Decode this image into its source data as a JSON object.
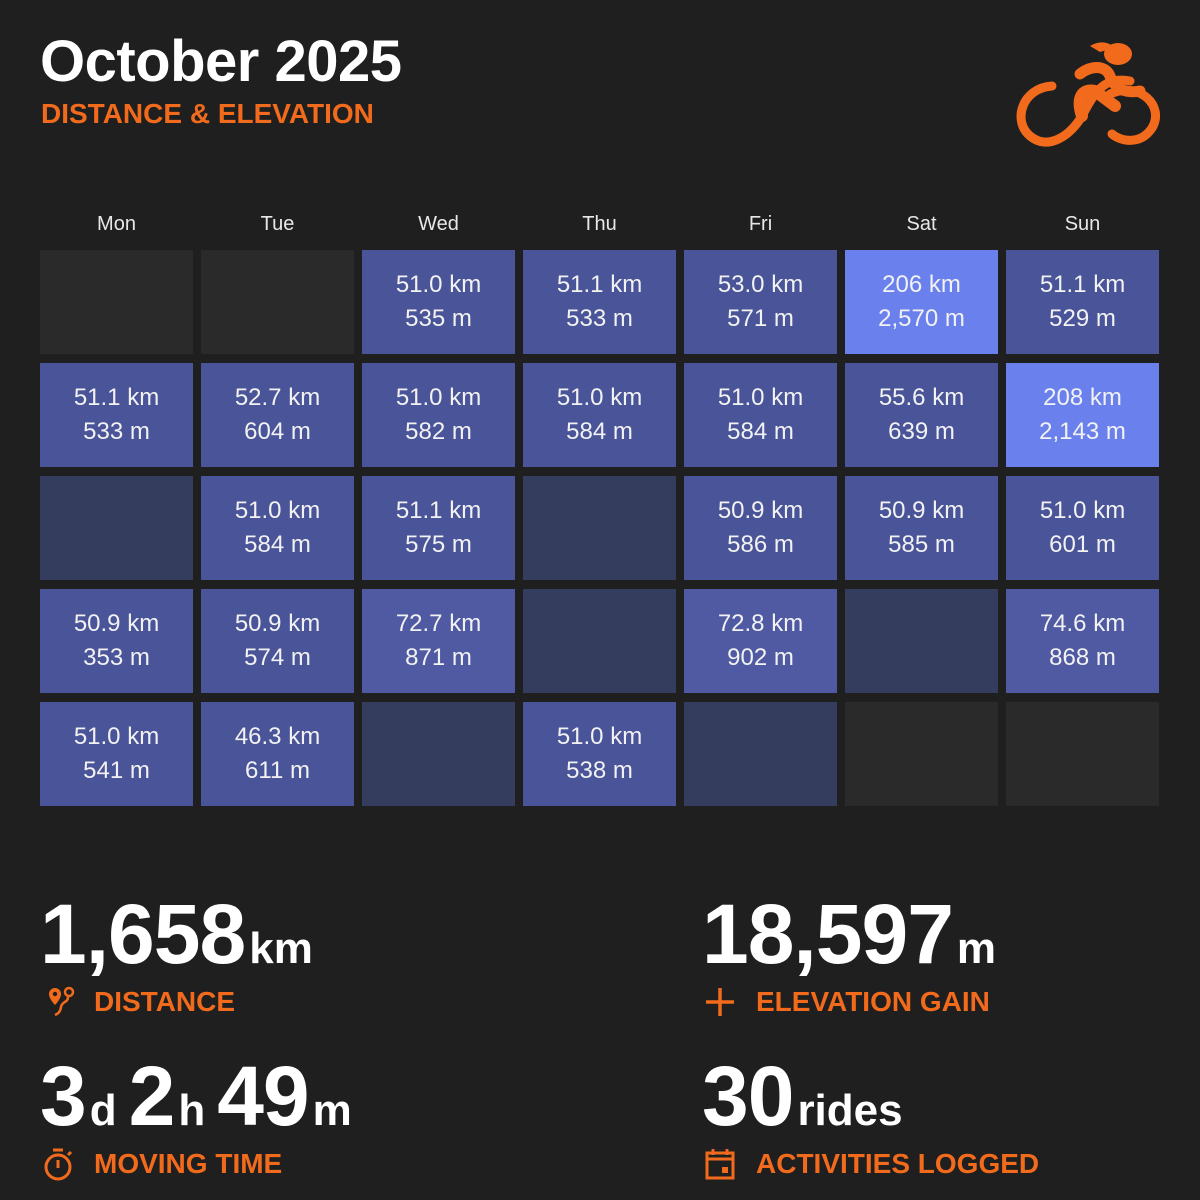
{
  "header": {
    "title": "October 2025",
    "subtitle": "DISTANCE & ELEVATION",
    "logo_icon": "cyclist-icon"
  },
  "colors": {
    "accent": "#f26b1d",
    "background": "#1f1f1f",
    "outside_month": "#2a2a2a",
    "rest_day": "#353d5e",
    "ride": "#4a5499",
    "long_ride": "#6a80ec"
  },
  "weekdays": [
    "Mon",
    "Tue",
    "Wed",
    "Thu",
    "Fri",
    "Sat",
    "Sun"
  ],
  "weeks": [
    [
      {
        "state": "out"
      },
      {
        "state": "out"
      },
      {
        "km": "51.0 km",
        "m": "535 m",
        "dist": 51.0
      },
      {
        "km": "51.1 km",
        "m": "533 m",
        "dist": 51.1
      },
      {
        "km": "53.0 km",
        "m": "571 m",
        "dist": 53.0
      },
      {
        "km": "206 km",
        "m": "2,570 m",
        "dist": 206
      },
      {
        "km": "51.1 km",
        "m": "529 m",
        "dist": 51.1
      }
    ],
    [
      {
        "km": "51.1 km",
        "m": "533 m",
        "dist": 51.1
      },
      {
        "km": "52.7 km",
        "m": "604 m",
        "dist": 52.7
      },
      {
        "km": "51.0 km",
        "m": "582 m",
        "dist": 51.0
      },
      {
        "km": "51.0 km",
        "m": "584 m",
        "dist": 51.0
      },
      {
        "km": "51.0 km",
        "m": "584 m",
        "dist": 51.0
      },
      {
        "km": "55.6 km",
        "m": "639 m",
        "dist": 55.6
      },
      {
        "km": "208 km",
        "m": "2,143 m",
        "dist": 208
      }
    ],
    [
      {
        "state": "rest"
      },
      {
        "km": "51.0 km",
        "m": "584 m",
        "dist": 51.0
      },
      {
        "km": "51.1 km",
        "m": "575 m",
        "dist": 51.1
      },
      {
        "state": "rest"
      },
      {
        "km": "50.9 km",
        "m": "586 m",
        "dist": 50.9
      },
      {
        "km": "50.9 km",
        "m": "585 m",
        "dist": 50.9
      },
      {
        "km": "51.0 km",
        "m": "601 m",
        "dist": 51.0
      }
    ],
    [
      {
        "km": "50.9 km",
        "m": "353 m",
        "dist": 50.9
      },
      {
        "km": "50.9 km",
        "m": "574 m",
        "dist": 50.9
      },
      {
        "km": "72.7 km",
        "m": "871 m",
        "dist": 72.7
      },
      {
        "state": "rest"
      },
      {
        "km": "72.8 km",
        "m": "902 m",
        "dist": 72.8
      },
      {
        "state": "rest"
      },
      {
        "km": "74.6 km",
        "m": "868 m",
        "dist": 74.6
      }
    ],
    [
      {
        "km": "51.0 km",
        "m": "541 m",
        "dist": 51.0
      },
      {
        "km": "46.3 km",
        "m": "611 m",
        "dist": 46.3
      },
      {
        "state": "rest"
      },
      {
        "km": "51.0 km",
        "m": "538 m",
        "dist": 51.0
      },
      {
        "state": "rest"
      },
      {
        "state": "out"
      },
      {
        "state": "out"
      }
    ]
  ],
  "stats": {
    "distance": {
      "value": "1,658",
      "unit": "km",
      "label": "DISTANCE",
      "icon": "route-icon"
    },
    "elevation": {
      "value": "18,597",
      "unit": "m",
      "label": "ELEVATION GAIN",
      "icon": "plus-icon"
    },
    "time": {
      "d": "3",
      "d_unit": "d",
      "h": "2",
      "h_unit": "h",
      "m": "49",
      "m_unit": "m",
      "label": "MOVING TIME",
      "icon": "stopwatch-icon"
    },
    "rides": {
      "value": "30",
      "unit": "rides",
      "label": "ACTIVITIES LOGGED",
      "icon": "calendar-icon"
    }
  }
}
